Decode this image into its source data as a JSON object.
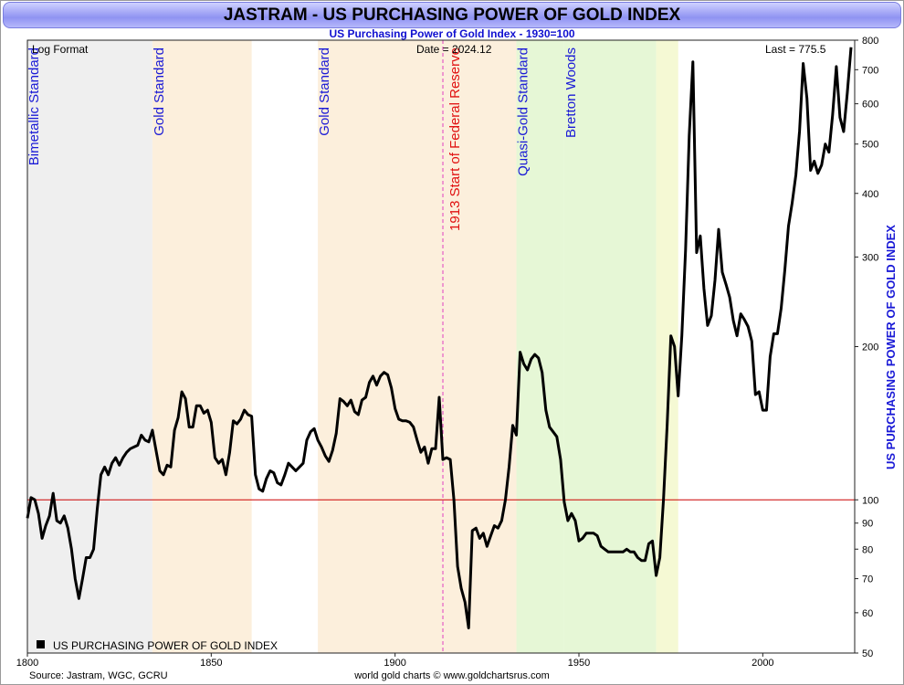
{
  "title": "JASTRAM - US PURCHASING POWER OF GOLD INDEX",
  "subtitle": "US Purchasing Power of Gold Index - 1930=100",
  "corner_labels": {
    "format": "Log Format",
    "date": "Date = 2024.12",
    "last": "Last = 775.5"
  },
  "footer": {
    "source": "Source: Jastram, WGC, GCRU",
    "credit": "world gold charts © www.goldchartsrus.com"
  },
  "colors": {
    "line": "#000000",
    "axis_label": "#1a1ad6",
    "reference_line": "#cc0000",
    "fed_marker": "#e040c0",
    "fed_label": "#e01010",
    "band_gray": "#efefef",
    "band_orange": "#fcefdc",
    "band_green": "#e6f7d6",
    "band_yellow": "#f5f9d4"
  },
  "chart_data": {
    "type": "line",
    "title": "JASTRAM - US PURCHASING POWER OF GOLD INDEX",
    "subtitle": "US Purchasing Power of Gold Index - 1930=100",
    "xlabel": "",
    "ylabel": "US PURCHASING POWER OF GOLD INDEX",
    "x_ticks": [
      1800,
      1850,
      1900,
      1950,
      2000
    ],
    "xlim": [
      1800,
      2025
    ],
    "y_scale": "log",
    "ylim": [
      50,
      800
    ],
    "y_ticks": [
      50,
      60,
      70,
      80,
      90,
      100,
      200,
      300,
      400,
      500,
      600,
      700,
      800
    ],
    "reference_line": 100,
    "legend": {
      "placement": "bottom-left",
      "entries": [
        "US PURCHASING POWER OF GOLD INDEX"
      ]
    },
    "regimes": [
      {
        "start": 1800,
        "end": 1834,
        "label": "Bimetallic Standard",
        "color": "gray"
      },
      {
        "start": 1834,
        "end": 1861,
        "label": "Gold Standard",
        "color": "orange"
      },
      {
        "start": 1861,
        "end": 1879,
        "label": "",
        "color": "none"
      },
      {
        "start": 1879,
        "end": 1933,
        "label": "Gold Standard",
        "color": "orange"
      },
      {
        "start": 1933,
        "end": 1946,
        "label": "Quasi-Gold Standard",
        "color": "green"
      },
      {
        "start": 1946,
        "end": 1971,
        "label": "Bretton Woods",
        "color": "green"
      },
      {
        "start": 1971,
        "end": 1977,
        "label": "",
        "color": "yellow"
      }
    ],
    "events": [
      {
        "x": 1913,
        "label": "1913 Start of Federal Reserve"
      }
    ],
    "series": [
      {
        "name": "US PURCHASING POWER OF GOLD INDEX",
        "x": [
          1800,
          1801,
          1802,
          1803,
          1804,
          1805,
          1806,
          1807,
          1808,
          1809,
          1810,
          1811,
          1812,
          1813,
          1814,
          1815,
          1816,
          1817,
          1818,
          1819,
          1820,
          1821,
          1822,
          1823,
          1824,
          1825,
          1826,
          1827,
          1828,
          1829,
          1830,
          1831,
          1832,
          1833,
          1834,
          1835,
          1836,
          1837,
          1838,
          1839,
          1840,
          1841,
          1842,
          1843,
          1844,
          1845,
          1846,
          1847,
          1848,
          1849,
          1850,
          1851,
          1852,
          1853,
          1854,
          1855,
          1856,
          1857,
          1858,
          1859,
          1860,
          1861,
          1862,
          1863,
          1864,
          1865,
          1866,
          1867,
          1868,
          1869,
          1870,
          1871,
          1872,
          1873,
          1874,
          1875,
          1876,
          1877,
          1878,
          1879,
          1880,
          1881,
          1882,
          1883,
          1884,
          1885,
          1886,
          1887,
          1888,
          1889,
          1890,
          1891,
          1892,
          1893,
          1894,
          1895,
          1896,
          1897,
          1898,
          1899,
          1900,
          1901,
          1902,
          1903,
          1904,
          1905,
          1906,
          1907,
          1908,
          1909,
          1910,
          1911,
          1912,
          1913,
          1914,
          1915,
          1916,
          1917,
          1918,
          1919,
          1920,
          1921,
          1922,
          1923,
          1924,
          1925,
          1926,
          1927,
          1928,
          1929,
          1930,
          1931,
          1932,
          1933,
          1934,
          1935,
          1936,
          1937,
          1938,
          1939,
          1940,
          1941,
          1942,
          1943,
          1944,
          1945,
          1946,
          1947,
          1948,
          1949,
          1950,
          1951,
          1952,
          1953,
          1954,
          1955,
          1956,
          1957,
          1958,
          1959,
          1960,
          1961,
          1962,
          1963,
          1964,
          1965,
          1966,
          1967,
          1968,
          1969,
          1970,
          1971,
          1972,
          1973,
          1974,
          1975,
          1976,
          1977,
          1978,
          1979,
          1980,
          1981,
          1982,
          1983,
          1984,
          1985,
          1986,
          1987,
          1988,
          1989,
          1990,
          1991,
          1992,
          1993,
          1994,
          1995,
          1996,
          1997,
          1998,
          1999,
          2000,
          2001,
          2002,
          2003,
          2004,
          2005,
          2006,
          2007,
          2008,
          2009,
          2010,
          2011,
          2012,
          2013,
          2014,
          2015,
          2016,
          2017,
          2018,
          2019,
          2020,
          2021,
          2022,
          2023,
          2024
        ],
        "values": [
          92,
          101,
          100,
          94,
          84,
          89,
          93,
          103,
          91,
          90,
          93,
          88,
          80,
          70,
          64,
          70,
          77,
          77,
          80,
          96,
          112,
          116,
          112,
          118,
          121,
          117,
          121,
          124,
          126,
          127,
          128,
          134,
          131,
          130,
          137,
          125,
          114,
          112,
          117,
          116,
          137,
          145,
          163,
          158,
          139,
          139,
          153,
          153,
          148,
          150,
          142,
          121,
          118,
          120,
          112,
          124,
          143,
          141,
          144,
          150,
          147,
          146,
          112,
          105,
          104,
          110,
          114,
          113,
          108,
          107,
          112,
          118,
          116,
          114,
          116,
          118,
          131,
          136,
          138,
          131,
          127,
          122,
          119,
          125,
          135,
          158,
          156,
          153,
          157,
          149,
          147,
          157,
          159,
          170,
          175,
          168,
          175,
          178,
          176,
          166,
          151,
          144,
          143,
          143,
          142,
          139,
          131,
          124,
          127,
          118,
          126,
          126,
          159,
          120,
          121,
          120,
          100,
          74,
          67,
          63,
          56,
          87,
          88,
          84,
          86,
          81,
          85,
          89,
          88,
          91,
          100,
          116,
          140,
          134,
          195,
          185,
          180,
          189,
          193,
          190,
          178,
          150,
          139,
          136,
          133,
          120,
          99,
          91,
          94,
          91,
          83,
          84,
          86,
          86,
          86,
          85,
          81,
          80,
          79,
          79,
          79,
          79,
          79,
          80,
          79,
          79,
          77,
          76,
          76,
          82,
          83,
          71,
          77,
          100,
          140,
          210,
          200,
          160,
          210,
          310,
          520,
          725,
          306,
          330,
          260,
          220,
          230,
          270,
          340,
          280,
          265,
          250,
          225,
          210,
          232,
          226,
          219,
          205,
          161,
          163,
          150,
          150,
          191,
          212,
          212,
          238,
          283,
          345,
          383,
          435,
          530,
          720,
          615,
          444,
          463,
          438,
          455,
          500,
          482,
          570,
          710,
          564,
          529,
          630,
          775
        ]
      }
    ]
  }
}
